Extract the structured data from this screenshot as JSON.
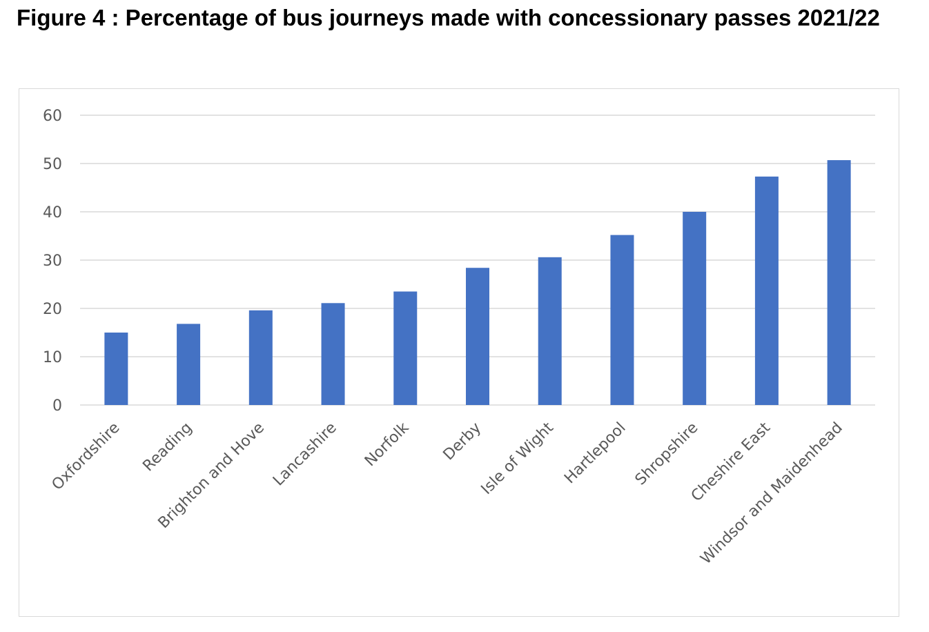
{
  "figure": {
    "title": "Figure 4 : Percentage of bus journeys made with concessionary passes 2021/22"
  },
  "chart_data": {
    "type": "bar",
    "title": "",
    "xlabel": "",
    "ylabel": "",
    "ylim": [
      0,
      60
    ],
    "yticks": [
      0,
      10,
      20,
      30,
      40,
      50,
      60
    ],
    "grid": true,
    "legend": "none",
    "bar_color": "#4472c4",
    "categories": [
      "Oxfordshire",
      "Reading",
      "Brighton and Hove",
      "Lancashire",
      "Norfolk",
      "Derby",
      "Isle of Wight",
      "Hartlepool",
      "Shropshire",
      "Cheshire East",
      "Windsor and Maidenhead"
    ],
    "values": [
      15,
      16.8,
      19.6,
      21.1,
      23.5,
      28.4,
      30.6,
      35.2,
      40,
      47.3,
      50.7
    ]
  }
}
